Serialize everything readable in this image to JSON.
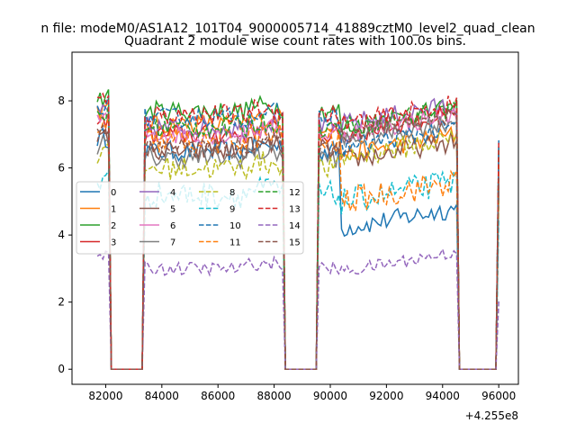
{
  "chart_data": {
    "type": "line",
    "suptitle": "n file: modeM0/AS1A12_101T04_9000005714_41889cztM0_level2_quad_clean",
    "title": "Quadrant 2 module wise count rates with 100.0s bins.",
    "xlabel": "",
    "ylabel": "",
    "x_offset_label": "+4.255e8",
    "xlim": [
      80800,
      96700
    ],
    "ylim": [
      -0.45,
      9.45
    ],
    "x_ticks": [
      82000,
      84000,
      86000,
      88000,
      90000,
      92000,
      94000,
      96000
    ],
    "x_tick_labels": [
      "82000",
      "84000",
      "86000",
      "88000",
      "90000",
      "92000",
      "94000",
      "96000"
    ],
    "y_ticks": [
      0,
      2,
      4,
      6,
      8
    ],
    "y_tick_labels": [
      "0",
      "2",
      "4",
      "6",
      "8"
    ],
    "grid": false,
    "legend": {
      "position": "center-left",
      "columns": 4
    },
    "segments": [
      {
        "start": 81700,
        "end": 82100
      },
      {
        "start": 83400,
        "end": 88300
      },
      {
        "start": 89600,
        "end": 94500
      },
      {
        "start": 96000,
        "end": 96000
      }
    ],
    "series": [
      {
        "name": "0",
        "level": 6.5,
        "level_b": 4.2,
        "noise": 0.3,
        "color": "#1f77b4",
        "dash": "solid"
      },
      {
        "name": "1",
        "level": 7.3,
        "level_b": 6.4,
        "noise": 0.3,
        "color": "#ff7f0e",
        "dash": "solid"
      },
      {
        "name": "2",
        "level": 7.7,
        "level_b": 7.2,
        "noise": 0.3,
        "color": "#2ca02c",
        "dash": "solid"
      },
      {
        "name": "3",
        "level": 7.0,
        "level_b": 7.0,
        "noise": 0.3,
        "color": "#d62728",
        "dash": "solid"
      },
      {
        "name": "4",
        "level": 7.2,
        "level_b": 7.3,
        "noise": 0.3,
        "color": "#9467bd",
        "dash": "solid"
      },
      {
        "name": "5",
        "level": 6.5,
        "level_b": 6.2,
        "noise": 0.3,
        "color": "#8c564b",
        "dash": "solid"
      },
      {
        "name": "6",
        "level": 7.0,
        "level_b": 7.0,
        "noise": 0.3,
        "color": "#e377c2",
        "dash": "solid"
      },
      {
        "name": "7",
        "level": 6.3,
        "level_b": 6.8,
        "noise": 0.3,
        "color": "#7f7f7f",
        "dash": "solid"
      },
      {
        "name": "8",
        "level": 6.0,
        "level_b": 6.3,
        "noise": 0.35,
        "color": "#bcbd22",
        "dash": "dashed"
      },
      {
        "name": "9",
        "level": 5.2,
        "level_b": 5.0,
        "noise": 0.4,
        "color": "#17becf",
        "dash": "dashed"
      },
      {
        "name": "10",
        "level": 7.5,
        "level_b": 6.6,
        "noise": 0.3,
        "color": "#1f77b4",
        "dash": "dashed"
      },
      {
        "name": "11",
        "level": 6.8,
        "level_b": 5.0,
        "noise": 0.4,
        "color": "#ff7f0e",
        "dash": "dashed"
      },
      {
        "name": "12",
        "level": 7.2,
        "level_b": 7.2,
        "noise": 0.3,
        "color": "#2ca02c",
        "dash": "dashed"
      },
      {
        "name": "13",
        "level": 7.6,
        "level_b": 7.3,
        "noise": 0.3,
        "color": "#d62728",
        "dash": "dashed"
      },
      {
        "name": "14",
        "level": 3.0,
        "level_b": 2.9,
        "noise": 0.2,
        "color": "#9467bd",
        "dash": "dashed"
      },
      {
        "name": "15",
        "level": 6.6,
        "level_b": 7.0,
        "noise": 0.3,
        "color": "#8c564b",
        "dash": "dashed"
      }
    ]
  }
}
